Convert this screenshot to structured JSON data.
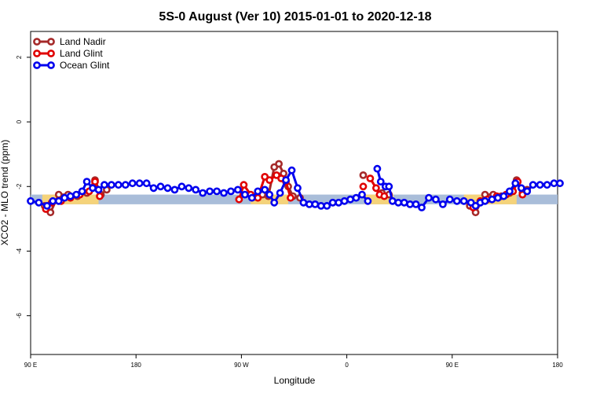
{
  "chart_data": {
    "type": "line",
    "title": "5S-0 August (Ver 10)   2015-01-01 to 2020-12-18",
    "xlabel": "Longitude",
    "ylabel": "XCO2 - MLO trend (ppm)",
    "xlim": [
      90,
      540
    ],
    "ylim": [
      -7.2,
      2.8
    ],
    "x_ticks": [
      {
        "value": 90,
        "label": "90 E"
      },
      {
        "value": 180,
        "label": "180"
      },
      {
        "value": 270,
        "label": "90 W"
      },
      {
        "value": 360,
        "label": "0"
      },
      {
        "value": 450,
        "label": "90 E"
      },
      {
        "value": 540,
        "label": "180"
      }
    ],
    "y_ticks": [
      {
        "value": 2,
        "label": "2"
      },
      {
        "value": 0,
        "label": "0"
      },
      {
        "value": -2,
        "label": "-2"
      },
      {
        "value": -4,
        "label": "-4"
      },
      {
        "value": -6,
        "label": "-6"
      }
    ],
    "band": {
      "y_min": -2.55,
      "y_max": -2.25,
      "color": "#a9bdd9",
      "land_color": "#f5d37a",
      "land_segments": [
        [
          100,
          148
        ],
        [
          278,
          310
        ],
        [
          375,
          400
        ],
        [
          460,
          505
        ]
      ]
    },
    "legend_position": "top-left",
    "series": [
      {
        "name": "Land Nadir",
        "color": "#a52a2a",
        "segments": [
          [
            [
              102,
              -2.6
            ],
            [
              107,
              -2.8
            ],
            [
              114,
              -2.25
            ],
            [
              122,
              -2.25
            ],
            [
              130,
              -2.3
            ],
            [
              138,
              -2.2
            ],
            [
              145,
              -1.8
            ],
            [
              150,
              -2.25
            ],
            [
              155,
              -2.1
            ]
          ],
          [
            [
              284,
              -2.3
            ],
            [
              288,
              -2.25
            ],
            [
              293,
              -2.3
            ],
            [
              298,
              -1.4
            ],
            [
              302,
              -1.3
            ],
            [
              306,
              -1.6
            ],
            [
              310,
              -2.0
            ],
            [
              314,
              -2.3
            ],
            [
              320,
              -2.35
            ]
          ],
          [
            [
              374,
              -1.65
            ]
          ],
          [
            [
              390,
              -2.2
            ],
            [
              396,
              -2.25
            ]
          ],
          [
            [
              465,
              -2.6
            ],
            [
              470,
              -2.8
            ],
            [
              478,
              -2.25
            ],
            [
              485,
              -2.25
            ],
            [
              492,
              -2.3
            ],
            [
              499,
              -2.2
            ],
            [
              505,
              -1.8
            ],
            [
              510,
              -2.2
            ],
            [
              514,
              -2.1
            ]
          ]
        ]
      },
      {
        "name": "Land Glint",
        "color": "#e00000",
        "segments": [
          [
            [
              103,
              -2.7
            ],
            [
              108,
              -2.5
            ],
            [
              116,
              -2.45
            ],
            [
              124,
              -2.35
            ],
            [
              132,
              -2.25
            ],
            [
              140,
              -2.15
            ],
            [
              145,
              -1.85
            ],
            [
              149,
              -2.3
            ]
          ],
          [
            [
              268,
              -2.4
            ],
            [
              272,
              -1.95
            ],
            [
              278,
              -2.25
            ],
            [
              284,
              -2.35
            ],
            [
              290,
              -1.7
            ],
            [
              294,
              -1.8
            ],
            [
              300,
              -1.65
            ],
            [
              304,
              -1.75
            ],
            [
              308,
              -1.85
            ],
            [
              312,
              -2.35
            ]
          ],
          [
            [
              374,
              -2.0
            ]
          ],
          [
            [
              380,
              -1.75
            ],
            [
              385,
              -2.05
            ],
            [
              388,
              -2.25
            ],
            [
              392,
              -2.3
            ]
          ],
          [
            [
              468,
              -2.65
            ],
            [
              474,
              -2.45
            ],
            [
              480,
              -2.4
            ],
            [
              488,
              -2.3
            ],
            [
              496,
              -2.25
            ],
            [
              502,
              -2.15
            ],
            [
              506,
              -1.85
            ],
            [
              510,
              -2.25
            ]
          ]
        ]
      },
      {
        "name": "Ocean Glint",
        "color": "#0000ee",
        "segments": [
          [
            [
              90,
              -2.45
            ],
            [
              97,
              -2.5
            ],
            [
              104,
              -2.6
            ],
            [
              109,
              -2.45
            ],
            [
              114,
              -2.45
            ],
            [
              119,
              -2.35
            ],
            [
              124,
              -2.3
            ],
            [
              129,
              -2.25
            ],
            [
              134,
              -2.15
            ],
            [
              138,
              -1.85
            ],
            [
              143,
              -2.05
            ],
            [
              148,
              -2.1
            ],
            [
              153,
              -1.95
            ],
            [
              159,
              -1.95
            ],
            [
              165,
              -1.95
            ],
            [
              171,
              -1.95
            ],
            [
              177,
              -1.9
            ],
            [
              183,
              -1.9
            ],
            [
              189,
              -1.9
            ],
            [
              195,
              -2.05
            ],
            [
              201,
              -2.0
            ],
            [
              207,
              -2.05
            ],
            [
              213,
              -2.1
            ],
            [
              219,
              -2.0
            ],
            [
              225,
              -2.05
            ],
            [
              231,
              -2.1
            ],
            [
              237,
              -2.2
            ],
            [
              243,
              -2.15
            ],
            [
              249,
              -2.15
            ],
            [
              255,
              -2.2
            ],
            [
              261,
              -2.15
            ],
            [
              267,
              -2.1
            ],
            [
              273,
              -2.25
            ],
            [
              279,
              -2.35
            ],
            [
              284,
              -2.15
            ],
            [
              290,
              -2.1
            ],
            [
              294,
              -2.25
            ],
            [
              298,
              -2.5
            ],
            [
              303,
              -2.2
            ],
            [
              308,
              -1.8
            ],
            [
              313,
              -1.5
            ],
            [
              318,
              -2.05
            ],
            [
              323,
              -2.5
            ],
            [
              328,
              -2.55
            ],
            [
              333,
              -2.55
            ],
            [
              338,
              -2.6
            ],
            [
              343,
              -2.6
            ],
            [
              348,
              -2.5
            ],
            [
              353,
              -2.5
            ],
            [
              358,
              -2.45
            ],
            [
              363,
              -2.4
            ],
            [
              368,
              -2.35
            ],
            [
              373,
              -2.25
            ],
            [
              378,
              -2.45
            ]
          ],
          [
            [
              386,
              -1.45
            ],
            [
              389,
              -1.85
            ],
            [
              393,
              -2.0
            ],
            [
              396,
              -2.0
            ],
            [
              399,
              -2.45
            ],
            [
              404,
              -2.5
            ],
            [
              409,
              -2.5
            ],
            [
              414,
              -2.55
            ],
            [
              419,
              -2.55
            ],
            [
              424,
              -2.65
            ],
            [
              430,
              -2.35
            ],
            [
              436,
              -2.4
            ],
            [
              442,
              -2.55
            ],
            [
              448,
              -2.4
            ],
            [
              454,
              -2.45
            ],
            [
              460,
              -2.45
            ],
            [
              466,
              -2.5
            ],
            [
              470,
              -2.6
            ],
            [
              474,
              -2.5
            ],
            [
              478,
              -2.45
            ],
            [
              484,
              -2.4
            ],
            [
              489,
              -2.35
            ],
            [
              494,
              -2.3
            ],
            [
              499,
              -2.15
            ],
            [
              504,
              -1.9
            ],
            [
              509,
              -2.05
            ],
            [
              514,
              -2.15
            ],
            [
              519,
              -1.95
            ],
            [
              525,
              -1.95
            ],
            [
              531,
              -1.95
            ],
            [
              537,
              -1.9
            ],
            [
              542,
              -1.9
            ]
          ]
        ]
      }
    ]
  }
}
